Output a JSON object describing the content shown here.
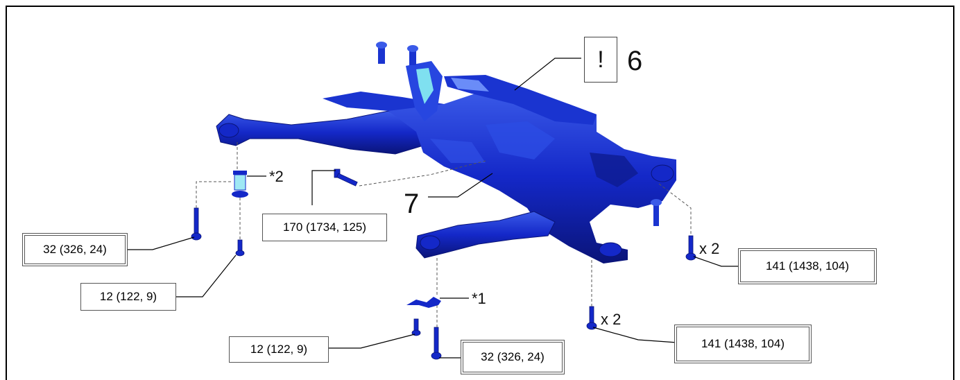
{
  "callouts": {
    "six": "6",
    "seven": "7",
    "notice_mark": "!"
  },
  "part_markers": {
    "star_one": "*1",
    "star_two": "*2"
  },
  "quantities": {
    "rear_right": "x 2",
    "front_right": "x 2"
  },
  "torque_labels": {
    "left_bolt": "32 (326, 24)",
    "left_small_bolt": "12 (122, 9)",
    "center_bolt": "170 (1734, 125)",
    "rear_right_bolts": "141 (1438, 104)",
    "front_small_bolt": "12 (122, 9)",
    "front_bolt": "32 (326, 24)",
    "front_right_bolts": "141 (1438, 104)"
  },
  "colors": {
    "part_blue": "#1428c8",
    "part_dark": "#0a1478",
    "part_light": "#4a6cf0",
    "highlight": "#7fe0f0",
    "leader": "#000000"
  }
}
